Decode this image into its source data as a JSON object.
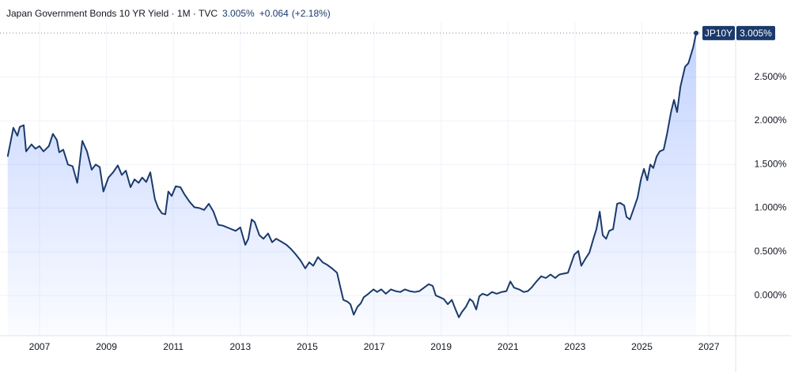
{
  "chart_data": {
    "type": "area",
    "header": {
      "title": "Japan Government Bonds 10 YR Yield · 1M · TVC",
      "change": "+0.064",
      "change_percent": "(+2.18%)"
    },
    "price_tag": {
      "value": 3.005,
      "label": "3.005%"
    },
    "x": [
      2006.05,
      2006.22,
      2006.34,
      2006.41,
      2006.53,
      2006.6,
      2006.76,
      2006.88,
      2007.0,
      2007.12,
      2007.28,
      2007.4,
      2007.52,
      2007.59,
      2007.71,
      2007.85,
      2007.99,
      2008.13,
      2008.28,
      2008.42,
      2008.56,
      2008.68,
      2008.8,
      2008.91,
      2009.06,
      2009.2,
      2009.34,
      2009.46,
      2009.58,
      2009.72,
      2009.84,
      2009.96,
      2010.07,
      2010.19,
      2010.31,
      2010.45,
      2010.55,
      2010.66,
      2010.76,
      2010.85,
      2010.95,
      2011.07,
      2011.21,
      2011.33,
      2011.49,
      2011.63,
      2011.78,
      2011.92,
      2012.06,
      2012.2,
      2012.34,
      2012.48,
      2012.67,
      2012.86,
      2013.0,
      2013.15,
      2013.24,
      2013.34,
      2013.43,
      2013.57,
      2013.69,
      2013.83,
      2013.95,
      2014.07,
      2014.21,
      2014.38,
      2014.52,
      2014.66,
      2014.8,
      2014.94,
      2015.06,
      2015.18,
      2015.32,
      2015.46,
      2015.6,
      2015.74,
      2015.89,
      2015.98,
      2016.08,
      2016.2,
      2016.29,
      2016.39,
      2016.5,
      2016.6,
      2016.69,
      2016.83,
      2016.98,
      2017.09,
      2017.21,
      2017.35,
      2017.5,
      2017.64,
      2017.78,
      2017.92,
      2018.06,
      2018.21,
      2018.35,
      2018.49,
      2018.63,
      2018.75,
      2018.84,
      2018.96,
      2019.08,
      2019.2,
      2019.32,
      2019.43,
      2019.53,
      2019.62,
      2019.74,
      2019.86,
      2019.95,
      2020.05,
      2020.14,
      2020.24,
      2020.38,
      2020.52,
      2020.66,
      2020.81,
      2020.95,
      2021.07,
      2021.18,
      2021.33,
      2021.47,
      2021.59,
      2021.7,
      2021.85,
      2021.99,
      2022.13,
      2022.27,
      2022.41,
      2022.53,
      2022.65,
      2022.79,
      2022.89,
      2022.98,
      2023.1,
      2023.19,
      2023.31,
      2023.43,
      2023.55,
      2023.64,
      2023.74,
      2023.83,
      2023.93,
      2024.02,
      2024.14,
      2024.26,
      2024.35,
      2024.47,
      2024.54,
      2024.64,
      2024.75,
      2024.87,
      2024.97,
      2025.06,
      2025.16,
      2025.25,
      2025.34,
      2025.44,
      2025.53,
      2025.65,
      2025.75,
      2025.87,
      2025.96,
      2026.05,
      2026.15,
      2026.29,
      2026.39,
      2026.53,
      2026.62
    ],
    "series": [
      {
        "name": "JP10Y",
        "color": "#1b3a6b",
        "values": [
          1.59,
          1.92,
          1.83,
          1.93,
          1.95,
          1.65,
          1.73,
          1.68,
          1.71,
          1.65,
          1.71,
          1.85,
          1.78,
          1.64,
          1.67,
          1.5,
          1.48,
          1.29,
          1.77,
          1.65,
          1.44,
          1.5,
          1.47,
          1.19,
          1.35,
          1.41,
          1.49,
          1.38,
          1.43,
          1.24,
          1.33,
          1.29,
          1.35,
          1.3,
          1.41,
          1.1,
          1.0,
          0.94,
          0.93,
          1.19,
          1.14,
          1.25,
          1.24,
          1.16,
          1.07,
          1.01,
          1.0,
          0.98,
          1.05,
          0.96,
          0.81,
          0.8,
          0.77,
          0.74,
          0.78,
          0.58,
          0.65,
          0.87,
          0.84,
          0.69,
          0.65,
          0.71,
          0.61,
          0.65,
          0.62,
          0.58,
          0.53,
          0.47,
          0.4,
          0.31,
          0.38,
          0.34,
          0.44,
          0.38,
          0.35,
          0.31,
          0.26,
          0.11,
          -0.05,
          -0.07,
          -0.1,
          -0.22,
          -0.13,
          -0.09,
          -0.02,
          0.02,
          0.07,
          0.04,
          0.07,
          0.02,
          0.07,
          0.05,
          0.04,
          0.07,
          0.05,
          0.04,
          0.05,
          0.09,
          0.13,
          0.11,
          0.0,
          -0.02,
          -0.04,
          -0.1,
          -0.05,
          -0.16,
          -0.25,
          -0.19,
          -0.13,
          -0.04,
          -0.07,
          -0.16,
          -0.01,
          0.02,
          0.0,
          0.04,
          0.02,
          0.04,
          0.05,
          0.16,
          0.09,
          0.07,
          0.04,
          0.05,
          0.09,
          0.16,
          0.22,
          0.2,
          0.24,
          0.2,
          0.24,
          0.25,
          0.26,
          0.37,
          0.47,
          0.51,
          0.34,
          0.42,
          0.49,
          0.65,
          0.76,
          0.96,
          0.69,
          0.65,
          0.74,
          0.76,
          1.05,
          1.06,
          1.03,
          0.9,
          0.87,
          0.99,
          1.12,
          1.33,
          1.45,
          1.32,
          1.5,
          1.46,
          1.59,
          1.65,
          1.67,
          1.85,
          2.1,
          2.24,
          2.1,
          2.39,
          2.62,
          2.66,
          2.84,
          3.005
        ]
      }
    ],
    "xlim": [
      2005.82,
      2027.8
    ],
    "xticks": [
      2007,
      2009,
      2011,
      2013,
      2015,
      2017,
      2019,
      2021,
      2023,
      2025,
      2027
    ],
    "ylim": [
      -0.46,
      3.13
    ],
    "yticks": [
      {
        "value": 0,
        "label": "0.000%"
      },
      {
        "value": 0.5,
        "label": "0.500%"
      },
      {
        "value": 1,
        "label": "1.000%"
      },
      {
        "value": 1.5,
        "label": "1.500%"
      },
      {
        "value": 2,
        "label": "2.000%"
      },
      {
        "value": 2.5,
        "label": "2.500%"
      }
    ],
    "grid": true
  }
}
